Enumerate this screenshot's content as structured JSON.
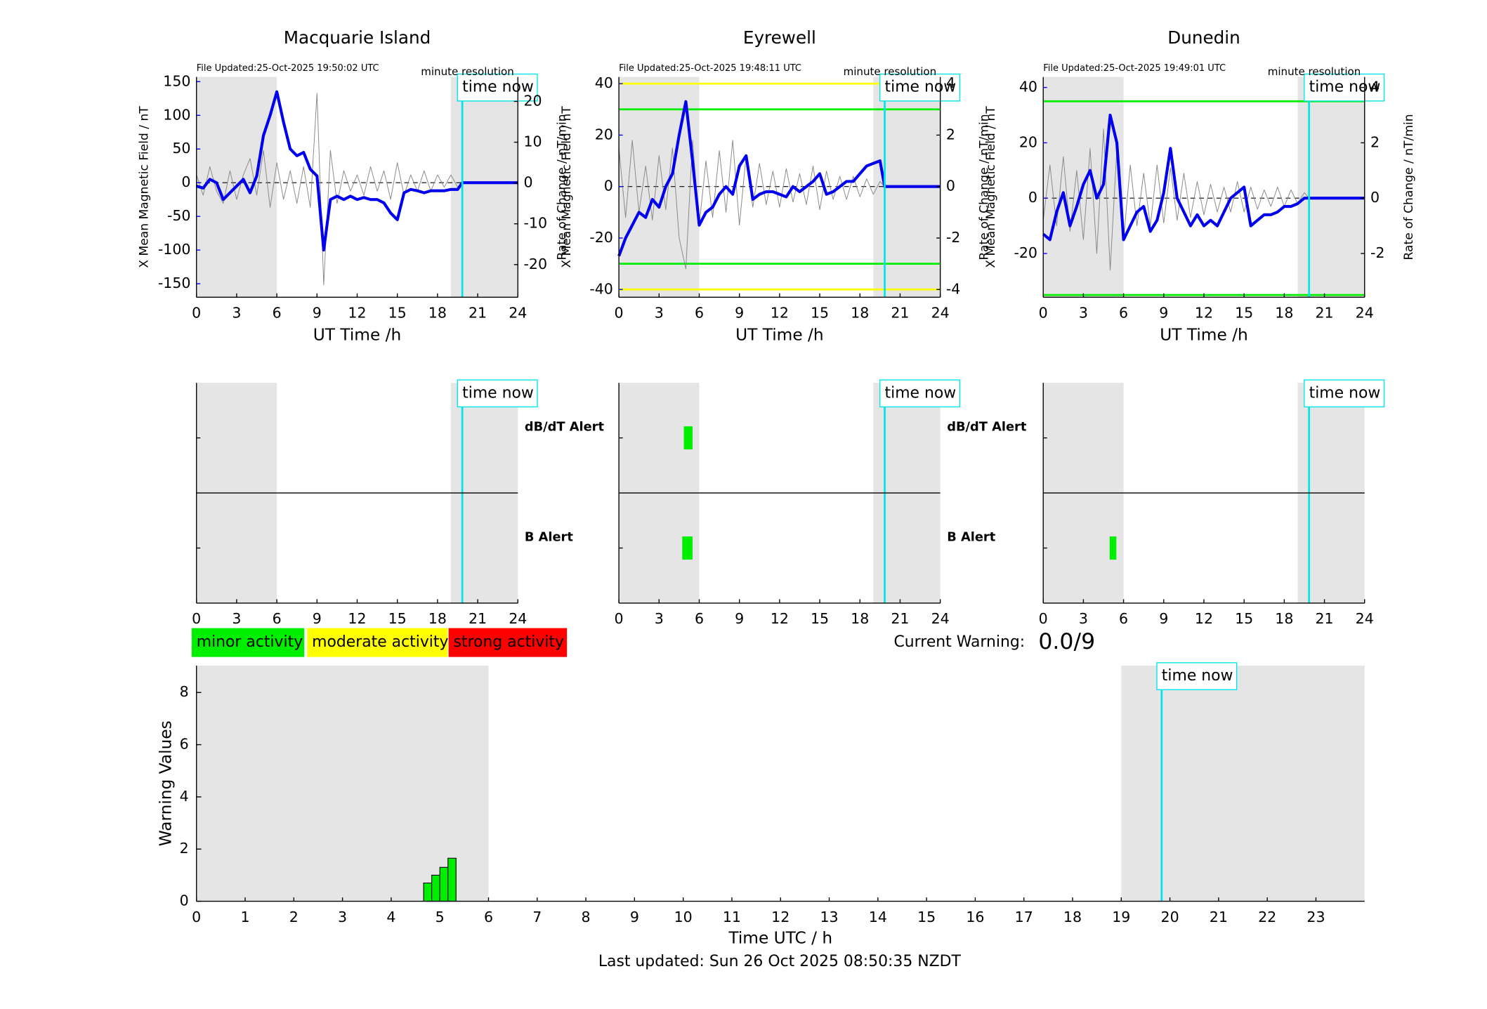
{
  "chart_data": [
    {
      "type": "line",
      "title": "Macquarie Island",
      "file_updated": "File Updated:25-Oct-2025 19:50:02 UTC",
      "resolution": "minute resolution",
      "ylabel": "X Mean Magnetic Field / nT",
      "y2label": "Rate of Change / nT/min",
      "xlabel": "UT Time /h",
      "y_axis_color": "#0000ee",
      "xlim": [
        0,
        24
      ],
      "xticks": [
        0,
        3,
        6,
        9,
        12,
        15,
        18,
        21,
        24
      ],
      "ylim": [
        -170,
        157
      ],
      "yticks": [
        -150,
        -100,
        -50,
        0,
        50,
        100,
        150
      ],
      "y2lim": [
        -28,
        26
      ],
      "y2ticks": [
        -20,
        -10,
        0,
        10,
        20
      ],
      "shaded": [
        [
          0,
          6
        ],
        [
          19,
          24
        ]
      ],
      "shade_color": "#e5e5e5",
      "now": 19.85,
      "now_label": "time now",
      "now_color": "#00e5ee",
      "thresholds": [],
      "x": [
        0,
        0.5,
        1,
        1.5,
        2,
        2.5,
        3,
        3.5,
        4,
        4.5,
        5,
        5.5,
        6,
        6.5,
        7,
        7.5,
        8,
        8.5,
        9,
        9.5,
        10,
        10.5,
        11,
        11.5,
        12,
        12.5,
        13,
        13.5,
        14,
        14.5,
        15,
        15.5,
        16,
        16.5,
        17,
        17.5,
        18,
        18.5,
        19,
        19.5,
        19.85,
        24
      ],
      "series": [
        {
          "color": "#888888",
          "axis": "y2",
          "values": [
            2,
            -3,
            4,
            -2,
            -5,
            3,
            -4,
            2,
            6,
            -3,
            8,
            -6,
            5,
            -4,
            3,
            -5,
            4,
            -6,
            22,
            -25,
            8,
            -5,
            3,
            -2,
            2,
            -3,
            4,
            -2,
            3,
            -4,
            5,
            -3,
            2,
            -2,
            3,
            -2,
            2,
            -1,
            2,
            -1,
            0,
            null
          ]
        },
        {
          "color": "#0000ee",
          "values": [
            -5,
            -8,
            5,
            0,
            -25,
            -15,
            -5,
            5,
            -15,
            10,
            70,
            100,
            135,
            90,
            50,
            40,
            45,
            20,
            10,
            -100,
            -25,
            -20,
            -25,
            -20,
            -25,
            -22,
            -25,
            -25,
            -30,
            -45,
            -55,
            -15,
            -10,
            -12,
            -15,
            -12,
            -12,
            -12,
            -10,
            -10,
            0,
            0
          ]
        }
      ]
    },
    {
      "type": "line",
      "title": "Eyrewell",
      "file_updated": "File Updated:25-Oct-2025 19:48:11 UTC",
      "resolution": "minute resolution",
      "ylabel": "X Mean Magnetic Field / nT",
      "y2label": "Rate of Change / nT/min",
      "xlabel": "UT Time /h",
      "y_axis_color": "#0000ee",
      "xlim": [
        0,
        24
      ],
      "xticks": [
        0,
        3,
        6,
        9,
        12,
        15,
        18,
        21,
        24
      ],
      "ylim": [
        -43,
        42.6
      ],
      "yticks": [
        -40,
        -20,
        0,
        20,
        40
      ],
      "y2lim": [
        -4.3,
        4.26
      ],
      "y2ticks": [
        -4,
        -2,
        0,
        2,
        4
      ],
      "shaded": [
        [
          0,
          6
        ],
        [
          19,
          24
        ]
      ],
      "shade_color": "#e5e5e5",
      "now": 19.85,
      "now_label": "time now",
      "now_color": "#00e5ee",
      "thresholds": [
        {
          "value": 40,
          "color": "#ffff00"
        },
        {
          "value": 30,
          "color": "#00ee00"
        },
        {
          "value": -30,
          "color": "#00ee00"
        },
        {
          "value": -40,
          "color": "#ffff00"
        }
      ],
      "x": [
        0,
        0.5,
        1,
        1.5,
        2,
        2.5,
        3,
        3.5,
        4,
        4.5,
        5,
        5.5,
        6,
        6.5,
        7,
        7.5,
        8,
        8.5,
        9,
        9.5,
        10,
        10.5,
        11,
        11.5,
        12,
        12.5,
        13,
        13.5,
        14,
        14.5,
        15,
        15.5,
        16,
        16.5,
        17,
        17.5,
        18,
        18.5,
        19,
        19.5,
        19.85,
        24
      ],
      "series": [
        {
          "color": "#888888",
          "axis": "y2",
          "values": [
            1.5,
            -1.2,
            1.8,
            -1,
            0.8,
            -1.3,
            1.2,
            -0.9,
            1.5,
            -2,
            -3.2,
            1.8,
            -1.5,
            1,
            -1.2,
            1.4,
            -1,
            1.8,
            -1.5,
            1.2,
            -0.8,
            0.9,
            -0.7,
            0.6,
            -0.8,
            0.7,
            -0.6,
            0.5,
            -0.7,
            0.8,
            -0.9,
            0.6,
            -0.5,
            0.4,
            -0.5,
            0.4,
            -0.4,
            0.3,
            -0.3,
            0.2,
            0,
            null
          ]
        },
        {
          "color": "#0000ee",
          "values": [
            -27,
            -20,
            -15,
            -10,
            -12,
            -5,
            -8,
            0,
            5,
            20,
            33,
            10,
            -15,
            -10,
            -8,
            -3,
            0,
            -3,
            8,
            12,
            -5,
            -3,
            -2,
            -2,
            -3,
            -4,
            0,
            -2,
            0,
            2,
            5,
            -3,
            -2,
            0,
            2,
            2,
            5,
            8,
            9,
            10,
            0,
            0
          ]
        }
      ]
    },
    {
      "type": "line",
      "title": "Dunedin",
      "file_updated": "File Updated:25-Oct-2025 19:49:01 UTC",
      "resolution": "minute resolution",
      "ylabel": "X Mean Magnetic Field / nT",
      "y2label": "Rate of Change / nT/min",
      "xlabel": "UT Time /h",
      "y_axis_color": "#0000ee",
      "xlim": [
        0,
        24
      ],
      "xticks": [
        0,
        3,
        6,
        9,
        12,
        15,
        18,
        21,
        24
      ],
      "ylim": [
        -35.8,
        43.8
      ],
      "yticks": [
        -20,
        0,
        20,
        40
      ],
      "y2lim": [
        -3.58,
        4.38
      ],
      "y2ticks": [
        -2,
        0,
        2,
        4
      ],
      "shaded": [
        [
          0,
          6
        ],
        [
          19,
          24
        ]
      ],
      "shade_color": "#e5e5e5",
      "now": 19.85,
      "now_label": "time now",
      "now_color": "#00e5ee",
      "thresholds": [
        {
          "value": 35,
          "color": "#00ee00"
        },
        {
          "value": -35,
          "color": "#00ee00"
        }
      ],
      "x": [
        0,
        0.5,
        1,
        1.5,
        2,
        2.5,
        3,
        3.5,
        4,
        4.5,
        5,
        5.5,
        6,
        6.5,
        7,
        7.5,
        8,
        8.5,
        9,
        9.5,
        10,
        10.5,
        11,
        11.5,
        12,
        12.5,
        13,
        13.5,
        14,
        14.5,
        15,
        15.5,
        16,
        16.5,
        17,
        17.5,
        18,
        18.5,
        19,
        19.5,
        19.85,
        24
      ],
      "series": [
        {
          "color": "#888888",
          "axis": "y2",
          "values": [
            -0.8,
            1.2,
            -1,
            1.5,
            -1.2,
            1,
            -1.5,
            1.8,
            -2,
            2.5,
            -2.6,
            1.8,
            -1.5,
            1.2,
            -1,
            0.9,
            -1,
            1.2,
            -0.9,
            1.1,
            -0.8,
            0.9,
            -0.7,
            0.6,
            -0.6,
            0.5,
            -0.5,
            0.4,
            -0.5,
            0.6,
            -0.5,
            0.4,
            -0.4,
            0.3,
            -0.3,
            0.4,
            -0.3,
            0.3,
            -0.2,
            0.2,
            0,
            null
          ]
        },
        {
          "color": "#0000ee",
          "values": [
            -13,
            -15,
            -5,
            2,
            -10,
            -3,
            5,
            10,
            0,
            5,
            30,
            20,
            -15,
            -10,
            -5,
            -3,
            -12,
            -8,
            2,
            18,
            0,
            -5,
            -10,
            -6,
            -10,
            -8,
            -10,
            -5,
            0,
            2,
            4,
            -10,
            -8,
            -6,
            -6,
            -5,
            -3,
            -3,
            -2,
            0,
            0,
            0
          ]
        }
      ]
    },
    {
      "type": "alert",
      "xlim": [
        0,
        24
      ],
      "xticks": [
        0,
        3,
        6,
        9,
        12,
        15,
        18,
        21,
        24
      ],
      "color": "#00ee00",
      "shaded": [
        [
          0,
          6
        ],
        [
          19,
          24
        ]
      ],
      "shade_color": "#e5e5e5",
      "now": 19.85,
      "now_label": "time now",
      "now_color": "#00e5ee",
      "rows": [
        {
          "label": "dB/dT Alert",
          "label_color": "#000000",
          "intervals": []
        },
        {
          "label": "B Alert",
          "label_color": "#0000ee",
          "intervals": []
        }
      ]
    },
    {
      "type": "alert",
      "xlim": [
        0,
        24
      ],
      "xticks": [
        0,
        3,
        6,
        9,
        12,
        15,
        18,
        21,
        24
      ],
      "color": "#00ee00",
      "shaded": [
        [
          0,
          6
        ],
        [
          19,
          24
        ]
      ],
      "shade_color": "#e5e5e5",
      "now": 19.85,
      "now_label": "time now",
      "now_color": "#00e5ee",
      "rows": [
        {
          "label": "dB/dT Alert",
          "label_color": "#000000",
          "intervals": [
            [
              4.85,
              5.5
            ]
          ]
        },
        {
          "label": "B Alert",
          "label_color": "#0000ee",
          "intervals": [
            [
              4.73,
              5.5
            ]
          ]
        }
      ]
    },
    {
      "type": "alert",
      "xlim": [
        0,
        24
      ],
      "xticks": [
        0,
        3,
        6,
        9,
        12,
        15,
        18,
        21,
        24
      ],
      "color": "#00ee00",
      "shaded": [
        [
          0,
          6
        ],
        [
          19,
          24
        ]
      ],
      "shade_color": "#e5e5e5",
      "now": 19.85,
      "now_label": "time now",
      "now_color": "#00e5ee",
      "rows": [
        {
          "intervals": []
        },
        {
          "intervals": [
            [
              4.96,
              5.46
            ]
          ]
        }
      ]
    },
    {
      "type": "histogram",
      "ylabel": "Warning Values",
      "xlabel": "Time UTC / h",
      "color": "#00ee00",
      "xlim": [
        0,
        24
      ],
      "xticks": [
        0,
        1,
        2,
        3,
        4,
        5,
        6,
        7,
        8,
        9,
        10,
        11,
        12,
        13,
        14,
        15,
        16,
        17,
        18,
        19,
        20,
        21,
        22,
        23
      ],
      "ylim": [
        0,
        9.03
      ],
      "yticks": [
        0,
        2,
        4,
        6,
        8
      ],
      "shaded": [
        [
          0,
          6
        ],
        [
          19,
          24
        ]
      ],
      "shade_color": "#e5e5e5",
      "now": 19.83,
      "now_label": "time now",
      "now_color": "#00e5ee",
      "bins": [
        4.667,
        4.833,
        5.0,
        5.167,
        5.333
      ],
      "values": [
        0.7,
        1.0,
        1.3,
        1.65
      ]
    }
  ],
  "legend": [
    {
      "label": "minor activity",
      "color": "#00ee00"
    },
    {
      "label": "moderate activity",
      "color": "#ffff00"
    },
    {
      "label": "strong activity",
      "color": "#ff0000"
    }
  ],
  "current_warning": {
    "label": "Current Warning:",
    "value": "0.0/9"
  },
  "last_updated": "Last updated: Sun 26 Oct 2025 08:50:35 NZDT"
}
